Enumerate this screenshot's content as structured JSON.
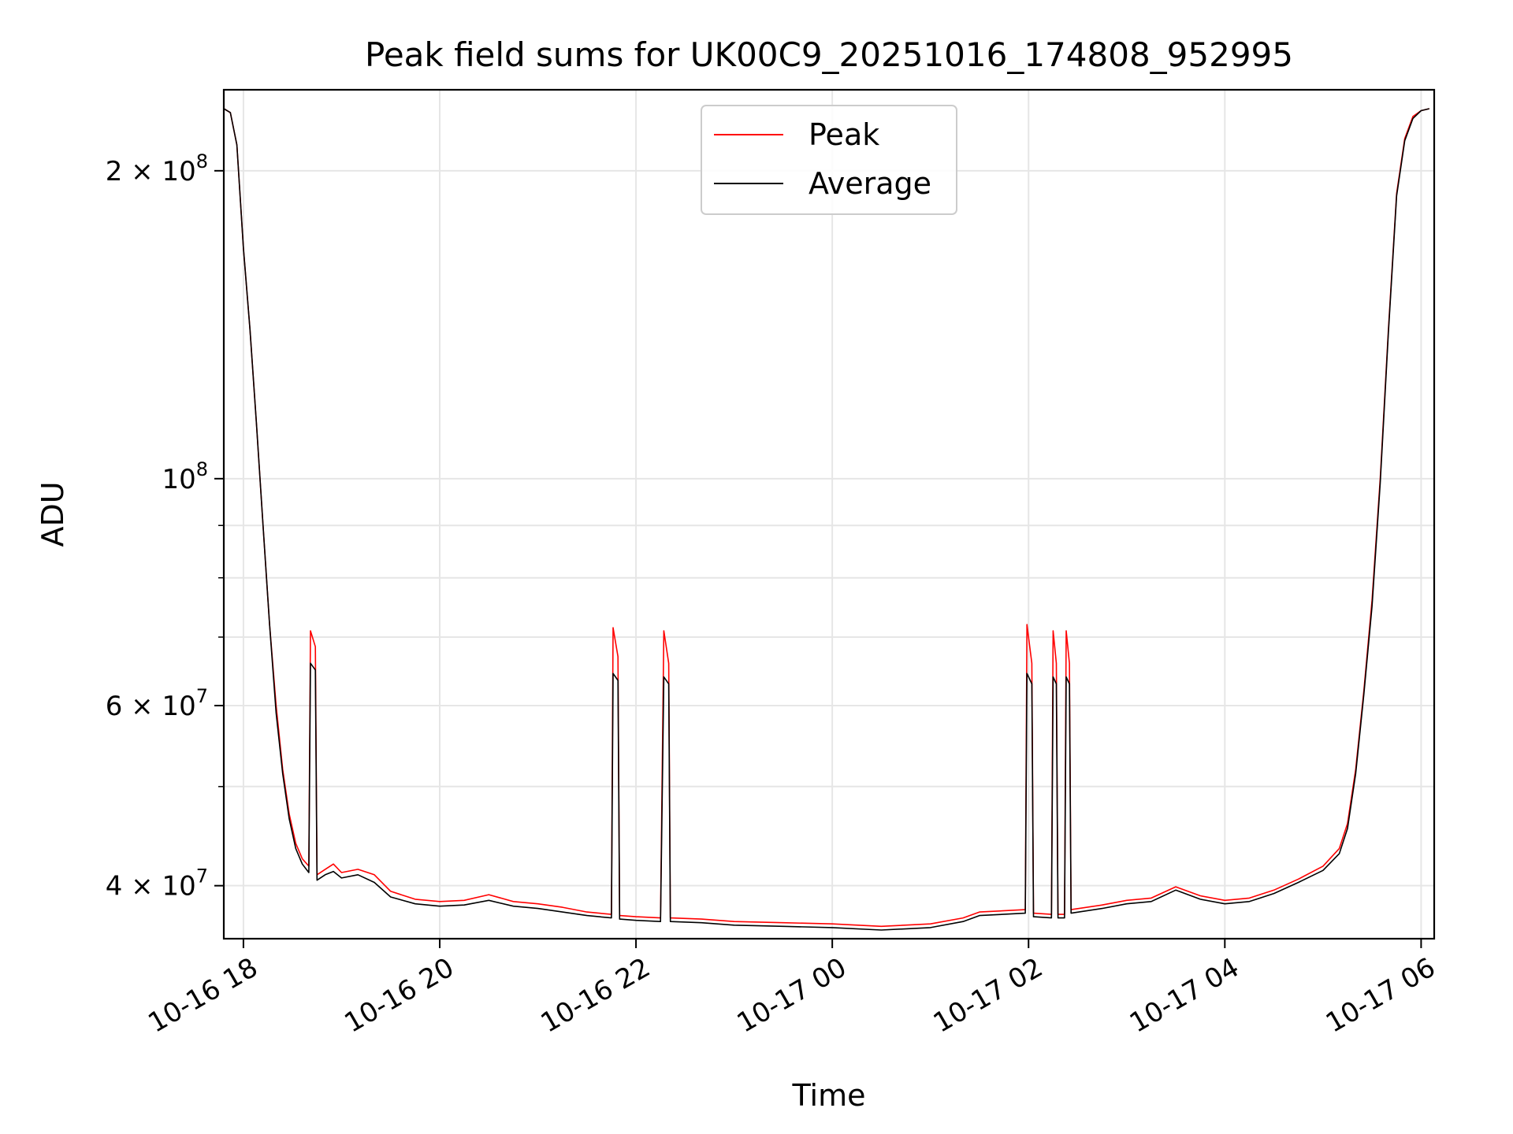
{
  "chart_data": {
    "type": "line",
    "title": "Peak field sums for UK00C9_20251016_174808_952995",
    "xlabel": "Time",
    "ylabel": "ADU",
    "yscale": "log",
    "xlim": [
      "2025-10-16 17:48",
      "2025-10-17 06:08"
    ],
    "ylim": [
      35500000,
      240000000
    ],
    "x_ticks": [
      {
        "value": "2025-10-16 18:00",
        "label": "10-16 18"
      },
      {
        "value": "2025-10-16 20:00",
        "label": "10-16 20"
      },
      {
        "value": "2025-10-16 22:00",
        "label": "10-16 22"
      },
      {
        "value": "2025-10-17 00:00",
        "label": "10-17 00"
      },
      {
        "value": "2025-10-17 02:00",
        "label": "10-17 02"
      },
      {
        "value": "2025-10-17 04:00",
        "label": "10-17 04"
      },
      {
        "value": "2025-10-17 06:00",
        "label": "10-17 06"
      }
    ],
    "y_ticks_major": [
      {
        "value": 40000000,
        "mant": "4",
        "exp": "7"
      },
      {
        "value": 60000000,
        "mant": "6",
        "exp": "7"
      },
      {
        "value": 100000000,
        "mant": "",
        "exp": "8"
      },
      {
        "value": 200000000,
        "mant": "2",
        "exp": "8"
      }
    ],
    "y_ticks_minor": [
      50000000,
      70000000,
      80000000,
      90000000
    ],
    "grid": true,
    "legend": {
      "placement": "upper center"
    },
    "series": [
      {
        "name": "Peak",
        "color": "#ff0000",
        "points": [
          [
            "2025-10-16 17:48",
            230000000
          ],
          [
            "2025-10-16 17:52",
            228000000
          ],
          [
            "2025-10-16 17:56",
            212000000
          ],
          [
            "2025-10-16 18:00",
            168000000
          ],
          [
            "2025-10-16 18:04",
            140000000
          ],
          [
            "2025-10-16 18:08",
            113000000
          ],
          [
            "2025-10-16 18:12",
            90000000
          ],
          [
            "2025-10-16 18:16",
            72000000
          ],
          [
            "2025-10-16 18:20",
            60000000
          ],
          [
            "2025-10-16 18:24",
            52000000
          ],
          [
            "2025-10-16 18:28",
            47000000
          ],
          [
            "2025-10-16 18:32",
            44000000
          ],
          [
            "2025-10-16 18:36",
            42500000
          ],
          [
            "2025-10-16 18:40",
            41800000
          ],
          [
            "2025-10-16 18:41",
            71000000
          ],
          [
            "2025-10-16 18:44",
            68500000
          ],
          [
            "2025-10-16 18:45",
            41000000
          ],
          [
            "2025-10-16 18:50",
            41500000
          ],
          [
            "2025-10-16 18:55",
            42000000
          ],
          [
            "2025-10-16 19:00",
            41200000
          ],
          [
            "2025-10-16 19:10",
            41500000
          ],
          [
            "2025-10-16 19:20",
            41000000
          ],
          [
            "2025-10-16 19:30",
            39500000
          ],
          [
            "2025-10-16 19:45",
            38800000
          ],
          [
            "2025-10-16 20:00",
            38600000
          ],
          [
            "2025-10-16 20:15",
            38700000
          ],
          [
            "2025-10-16 20:30",
            39200000
          ],
          [
            "2025-10-16 20:45",
            38600000
          ],
          [
            "2025-10-16 21:00",
            38400000
          ],
          [
            "2025-10-16 21:15",
            38100000
          ],
          [
            "2025-10-16 21:30",
            37700000
          ],
          [
            "2025-10-16 21:45",
            37500000
          ],
          [
            "2025-10-16 21:46",
            71500000
          ],
          [
            "2025-10-16 21:49",
            67000000
          ],
          [
            "2025-10-16 21:50",
            37400000
          ],
          [
            "2025-10-16 22:00",
            37300000
          ],
          [
            "2025-10-16 22:15",
            37200000
          ],
          [
            "2025-10-16 22:17",
            71000000
          ],
          [
            "2025-10-16 22:20",
            66000000
          ],
          [
            "2025-10-16 22:21",
            37200000
          ],
          [
            "2025-10-16 22:40",
            37100000
          ],
          [
            "2025-10-16 23:00",
            36900000
          ],
          [
            "2025-10-16 23:30",
            36800000
          ],
          [
            "2025-10-17 00:00",
            36700000
          ],
          [
            "2025-10-17 00:30",
            36500000
          ],
          [
            "2025-10-17 01:00",
            36700000
          ],
          [
            "2025-10-17 01:20",
            37200000
          ],
          [
            "2025-10-17 01:30",
            37700000
          ],
          [
            "2025-10-17 01:58",
            37900000
          ],
          [
            "2025-10-17 01:59",
            72000000
          ],
          [
            "2025-10-17 02:02",
            66000000
          ],
          [
            "2025-10-17 02:03",
            37600000
          ],
          [
            "2025-10-17 02:14",
            37500000
          ],
          [
            "2025-10-17 02:15",
            71000000
          ],
          [
            "2025-10-17 02:17",
            66000000
          ],
          [
            "2025-10-17 02:18",
            37500000
          ],
          [
            "2025-10-17 02:22",
            37500000
          ],
          [
            "2025-10-17 02:23",
            71000000
          ],
          [
            "2025-10-17 02:25",
            66000000
          ],
          [
            "2025-10-17 02:26",
            37900000
          ],
          [
            "2025-10-17 02:45",
            38300000
          ],
          [
            "2025-10-17 03:00",
            38700000
          ],
          [
            "2025-10-17 03:15",
            38900000
          ],
          [
            "2025-10-17 03:30",
            39900000
          ],
          [
            "2025-10-17 03:45",
            39100000
          ],
          [
            "2025-10-17 04:00",
            38700000
          ],
          [
            "2025-10-17 04:15",
            38900000
          ],
          [
            "2025-10-17 04:30",
            39600000
          ],
          [
            "2025-10-17 04:45",
            40600000
          ],
          [
            "2025-10-17 05:00",
            41800000
          ],
          [
            "2025-10-17 05:10",
            43500000
          ],
          [
            "2025-10-17 05:15",
            46000000
          ],
          [
            "2025-10-17 05:20",
            52000000
          ],
          [
            "2025-10-17 05:25",
            62000000
          ],
          [
            "2025-10-17 05:30",
            76000000
          ],
          [
            "2025-10-17 05:35",
            100000000
          ],
          [
            "2025-10-17 05:40",
            140000000
          ],
          [
            "2025-10-17 05:45",
            190000000
          ],
          [
            "2025-10-17 05:50",
            215000000
          ],
          [
            "2025-10-17 05:55",
            226000000
          ],
          [
            "2025-10-17 06:00",
            229000000
          ],
          [
            "2025-10-17 06:05",
            230000000
          ]
        ]
      },
      {
        "name": "Average",
        "color": "#000000",
        "points": [
          [
            "2025-10-16 17:48",
            230000000
          ],
          [
            "2025-10-16 17:52",
            228000000
          ],
          [
            "2025-10-16 17:56",
            212000000
          ],
          [
            "2025-10-16 18:00",
            168000000
          ],
          [
            "2025-10-16 18:04",
            140000000
          ],
          [
            "2025-10-16 18:08",
            113000000
          ],
          [
            "2025-10-16 18:12",
            90000000
          ],
          [
            "2025-10-16 18:16",
            72000000
          ],
          [
            "2025-10-16 18:20",
            59000000
          ],
          [
            "2025-10-16 18:24",
            51500000
          ],
          [
            "2025-10-16 18:28",
            46500000
          ],
          [
            "2025-10-16 18:32",
            43500000
          ],
          [
            "2025-10-16 18:36",
            42000000
          ],
          [
            "2025-10-16 18:40",
            41200000
          ],
          [
            "2025-10-16 18:41",
            66000000
          ],
          [
            "2025-10-16 18:44",
            65000000
          ],
          [
            "2025-10-16 18:45",
            40500000
          ],
          [
            "2025-10-16 18:50",
            41000000
          ],
          [
            "2025-10-16 18:55",
            41300000
          ],
          [
            "2025-10-16 19:00",
            40700000
          ],
          [
            "2025-10-16 19:10",
            41000000
          ],
          [
            "2025-10-16 19:20",
            40300000
          ],
          [
            "2025-10-16 19:30",
            39000000
          ],
          [
            "2025-10-16 19:45",
            38400000
          ],
          [
            "2025-10-16 20:00",
            38200000
          ],
          [
            "2025-10-16 20:15",
            38300000
          ],
          [
            "2025-10-16 20:30",
            38700000
          ],
          [
            "2025-10-16 20:45",
            38200000
          ],
          [
            "2025-10-16 21:00",
            38000000
          ],
          [
            "2025-10-16 21:15",
            37700000
          ],
          [
            "2025-10-16 21:30",
            37400000
          ],
          [
            "2025-10-16 21:45",
            37200000
          ],
          [
            "2025-10-16 21:46",
            64500000
          ],
          [
            "2025-10-16 21:49",
            63500000
          ],
          [
            "2025-10-16 21:50",
            37100000
          ],
          [
            "2025-10-16 22:00",
            37000000
          ],
          [
            "2025-10-16 22:15",
            36900000
          ],
          [
            "2025-10-16 22:17",
            64000000
          ],
          [
            "2025-10-16 22:20",
            63000000
          ],
          [
            "2025-10-16 22:21",
            36900000
          ],
          [
            "2025-10-16 22:40",
            36800000
          ],
          [
            "2025-10-16 23:00",
            36600000
          ],
          [
            "2025-10-16 23:30",
            36500000
          ],
          [
            "2025-10-17 00:00",
            36400000
          ],
          [
            "2025-10-17 00:30",
            36200000
          ],
          [
            "2025-10-17 01:00",
            36400000
          ],
          [
            "2025-10-17 01:20",
            36900000
          ],
          [
            "2025-10-17 01:30",
            37400000
          ],
          [
            "2025-10-17 01:58",
            37600000
          ],
          [
            "2025-10-17 01:59",
            64500000
          ],
          [
            "2025-10-17 02:02",
            63000000
          ],
          [
            "2025-10-17 02:03",
            37300000
          ],
          [
            "2025-10-17 02:14",
            37200000
          ],
          [
            "2025-10-17 02:15",
            64000000
          ],
          [
            "2025-10-17 02:17",
            63000000
          ],
          [
            "2025-10-17 02:18",
            37200000
          ],
          [
            "2025-10-17 02:22",
            37200000
          ],
          [
            "2025-10-17 02:23",
            64000000
          ],
          [
            "2025-10-17 02:25",
            63000000
          ],
          [
            "2025-10-17 02:26",
            37600000
          ],
          [
            "2025-10-17 02:45",
            38000000
          ],
          [
            "2025-10-17 03:00",
            38400000
          ],
          [
            "2025-10-17 03:15",
            38600000
          ],
          [
            "2025-10-17 03:30",
            39600000
          ],
          [
            "2025-10-17 03:45",
            38800000
          ],
          [
            "2025-10-17 04:00",
            38400000
          ],
          [
            "2025-10-17 04:15",
            38600000
          ],
          [
            "2025-10-17 04:30",
            39300000
          ],
          [
            "2025-10-17 04:45",
            40300000
          ],
          [
            "2025-10-17 05:00",
            41400000
          ],
          [
            "2025-10-17 05:10",
            43000000
          ],
          [
            "2025-10-17 05:15",
            45500000
          ],
          [
            "2025-10-17 05:20",
            51500000
          ],
          [
            "2025-10-17 05:25",
            61500000
          ],
          [
            "2025-10-17 05:30",
            75000000
          ],
          [
            "2025-10-17 05:35",
            99000000
          ],
          [
            "2025-10-17 05:40",
            139000000
          ],
          [
            "2025-10-17 05:45",
            189000000
          ],
          [
            "2025-10-17 05:50",
            214000000
          ],
          [
            "2025-10-17 05:55",
            225000000
          ],
          [
            "2025-10-17 06:00",
            229000000
          ],
          [
            "2025-10-17 06:05",
            230000000
          ]
        ]
      }
    ]
  }
}
